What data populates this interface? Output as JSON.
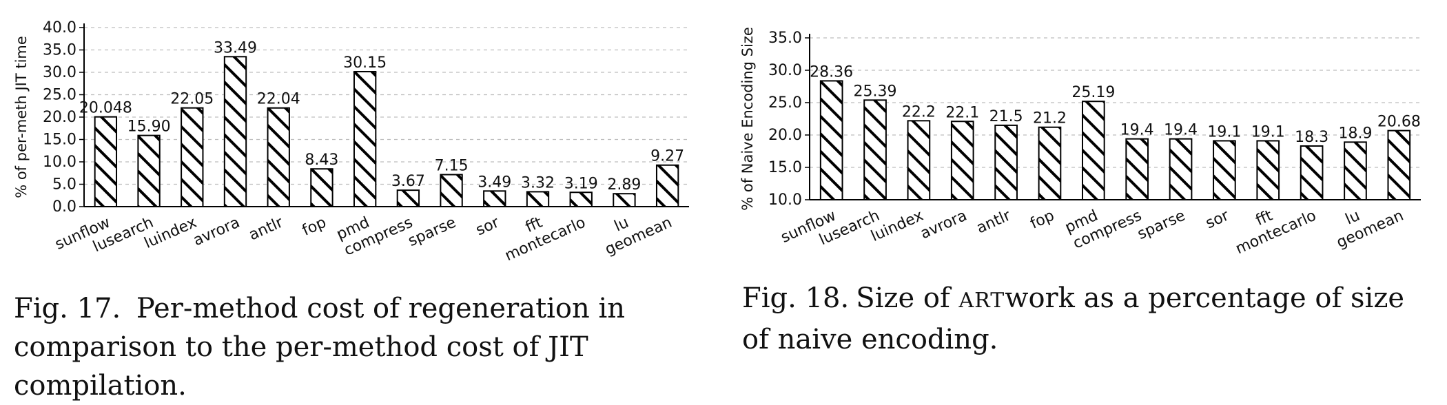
{
  "chart_data": [
    {
      "type": "bar",
      "ylabel": "% of per-meth JIT time",
      "xlabel": "",
      "ylim": [
        0,
        40
      ],
      "yticks": [
        "0.0",
        "5.0",
        "10.0",
        "15.0",
        "20.0",
        "25.0",
        "30.0",
        "35.0",
        "40.0"
      ],
      "grid": "horizontal dashed",
      "bar_fill": "diagonal hatch",
      "categories": [
        "sunflow",
        "lusearch",
        "luindex",
        "avrora",
        "antlr",
        "fop",
        "pmd",
        "compress",
        "sparse",
        "sor",
        "fft",
        "montecarlo",
        "lu",
        "geomean"
      ],
      "values": [
        20.048,
        15.9,
        22.05,
        33.49,
        22.04,
        8.43,
        30.15,
        3.67,
        7.15,
        3.49,
        3.32,
        3.19,
        2.89,
        9.27
      ],
      "data_labels": [
        "20.048",
        "15.90",
        "22.05",
        "33.49",
        "22.04",
        "8.43",
        "30.15",
        "3.67",
        "7.15",
        "3.49",
        "3.32",
        "3.19",
        "2.89",
        "9.27"
      ]
    },
    {
      "type": "bar",
      "ylabel": "% of Naive Encoding Size",
      "xlabel": "",
      "ylim": [
        10,
        35
      ],
      "yticks": [
        "10.0",
        "15.0",
        "20.0",
        "25.0",
        "30.0",
        "35.0"
      ],
      "grid": "horizontal dashed",
      "bar_fill": "diagonal hatch",
      "categories": [
        "sunflow",
        "lusearch",
        "luindex",
        "avrora",
        "antlr",
        "fop",
        "pmd",
        "compress",
        "sparse",
        "sor",
        "fft",
        "montecarlo",
        "lu",
        "geomean"
      ],
      "values": [
        28.36,
        25.39,
        22.2,
        22.1,
        21.5,
        21.2,
        25.19,
        19.4,
        19.4,
        19.1,
        19.1,
        18.3,
        18.9,
        20.68
      ],
      "data_labels": [
        "28.36",
        "25.39",
        "22.2",
        "22.1",
        "21.5",
        "21.2",
        "25.19",
        "19.4",
        "19.4",
        "19.1",
        "19.1",
        "18.3",
        "18.9",
        "20.68"
      ]
    }
  ],
  "captions": {
    "fig17": {
      "number": "Fig. 17.",
      "text": "Per-method cost of regeneration in comparison to the per-method cost of JIT compilation."
    },
    "fig18": {
      "number": "Fig. 18.",
      "text_prefix": "Size of ",
      "smallcaps": "ART",
      "text_suffix": "work as a percentage of size of naive encoding."
    }
  }
}
